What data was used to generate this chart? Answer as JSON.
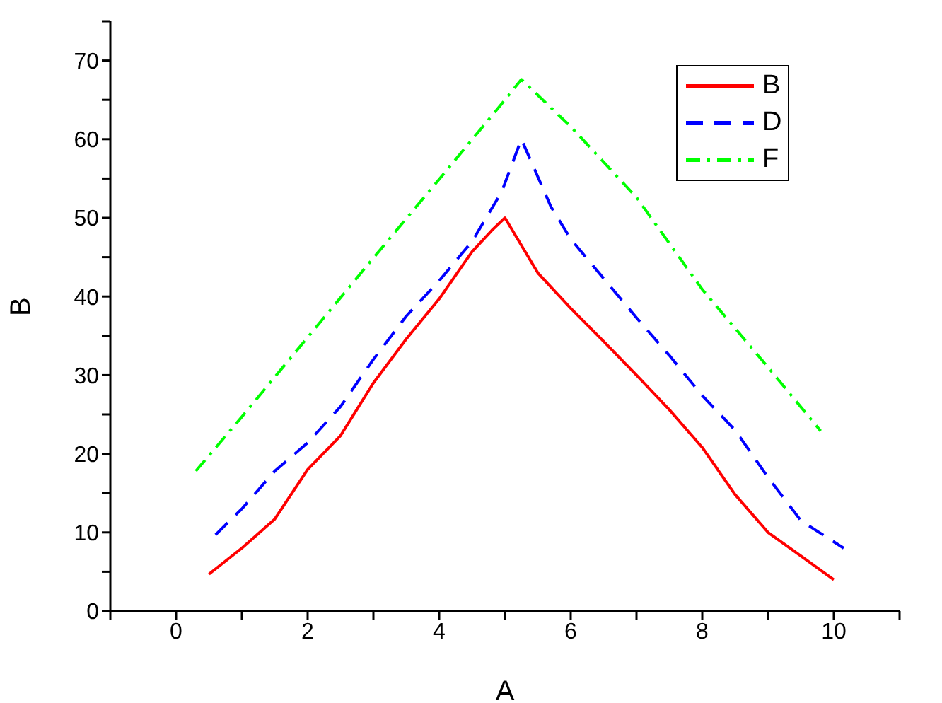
{
  "chart_data": {
    "type": "line",
    "xlabel": "A",
    "ylabel": "B",
    "xlim": [
      -1,
      11
    ],
    "xticks": [
      {
        "value": -1,
        "label": null
      },
      0,
      {
        "value": 1,
        "label": null
      },
      2,
      {
        "value": 3,
        "label": null
      },
      4,
      {
        "value": 5,
        "label": null
      },
      6,
      {
        "value": 7,
        "label": null
      },
      8,
      {
        "value": 9,
        "label": null
      },
      10,
      {
        "value": 11,
        "label": null
      }
    ],
    "ylim": [
      0,
      75
    ],
    "yticks": [
      0,
      {
        "value": 5,
        "label": null
      },
      10,
      {
        "value": 15,
        "label": null
      },
      20,
      {
        "value": 25,
        "label": null
      },
      30,
      {
        "value": 35,
        "label": null
      },
      40,
      {
        "value": 45,
        "label": null
      },
      50,
      {
        "value": 55,
        "label": null
      },
      60,
      {
        "value": 65,
        "label": null
      },
      70,
      {
        "value": 75,
        "label": null
      }
    ],
    "grid": false,
    "legend": "top right",
    "marker": "none",
    "series": [
      {
        "name": "B",
        "color": "#ff0000",
        "line_style": "solid",
        "x": [
          0.5,
          1,
          1.5,
          2,
          2.5,
          3,
          3.5,
          4,
          4.5,
          4.8,
          5,
          5.5,
          6,
          6.5,
          7,
          7.5,
          8,
          8.5,
          9,
          9.5,
          10
        ],
        "values": [
          4.7,
          8,
          11.7,
          18,
          22.3,
          29,
          34.6,
          39.7,
          45.7,
          48.4,
          50,
          43,
          38.5,
          34.3,
          30,
          25.6,
          20.8,
          14.8,
          10,
          7,
          4
        ]
      },
      {
        "name": "D",
        "color": "#0000ff",
        "line_style": "dashed",
        "x": [
          0.6,
          1,
          1.5,
          2,
          2.5,
          3,
          3.5,
          4,
          4.5,
          4.95,
          5.25,
          5.7,
          6,
          6.5,
          7,
          7.5,
          8,
          8.5,
          9,
          9.5,
          10.15
        ],
        "values": [
          9.7,
          13,
          17.8,
          21.4,
          26,
          32,
          37.5,
          42,
          47,
          53.3,
          60,
          51.4,
          47.3,
          42.3,
          37.3,
          32.5,
          27.4,
          23,
          17,
          11.5,
          8
        ]
      },
      {
        "name": "F",
        "color": "#00ff00",
        "line_style": "dashdot",
        "x": [
          0.3,
          1,
          2,
          3,
          4,
          5,
          5.25,
          6,
          7,
          8,
          9,
          9.8
        ],
        "values": [
          17.8,
          24.7,
          34.8,
          44.9,
          54.9,
          65,
          67.6,
          61.6,
          52.6,
          40.9,
          31,
          22.9
        ]
      }
    ]
  }
}
